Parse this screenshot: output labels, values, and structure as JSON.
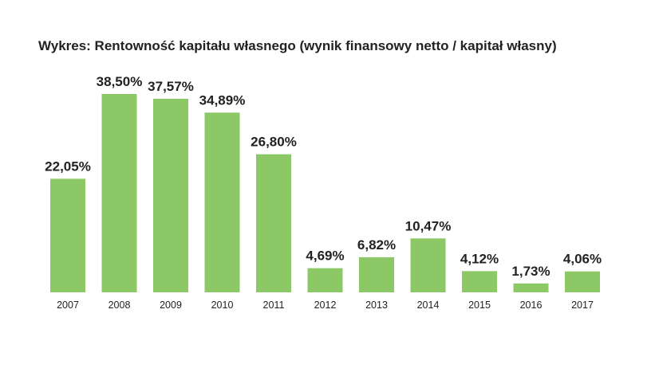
{
  "chart_data": {
    "type": "bar",
    "title": "Wykres: Rentowność kapitału własnego (wynik finansowy netto / kapitał własny)",
    "categories": [
      "2007",
      "2008",
      "2009",
      "2010",
      "2011",
      "2012",
      "2013",
      "2014",
      "2015",
      "2016",
      "2017"
    ],
    "values": [
      22.05,
      38.5,
      37.57,
      34.89,
      26.8,
      4.69,
      6.82,
      10.47,
      4.12,
      1.73,
      4.06
    ],
    "data_labels": [
      "22,05%",
      "38,50%",
      "37,57%",
      "34,89%",
      "26,80%",
      "4,69%",
      "6,82%",
      "10,47%",
      "4,12%",
      "1,73%",
      "4,06%"
    ],
    "xlabel": "",
    "ylabel": "",
    "ylim": [
      0,
      38.5
    ],
    "grid": false,
    "legend": "none",
    "colors": {
      "bar": "#8dc866"
    }
  }
}
